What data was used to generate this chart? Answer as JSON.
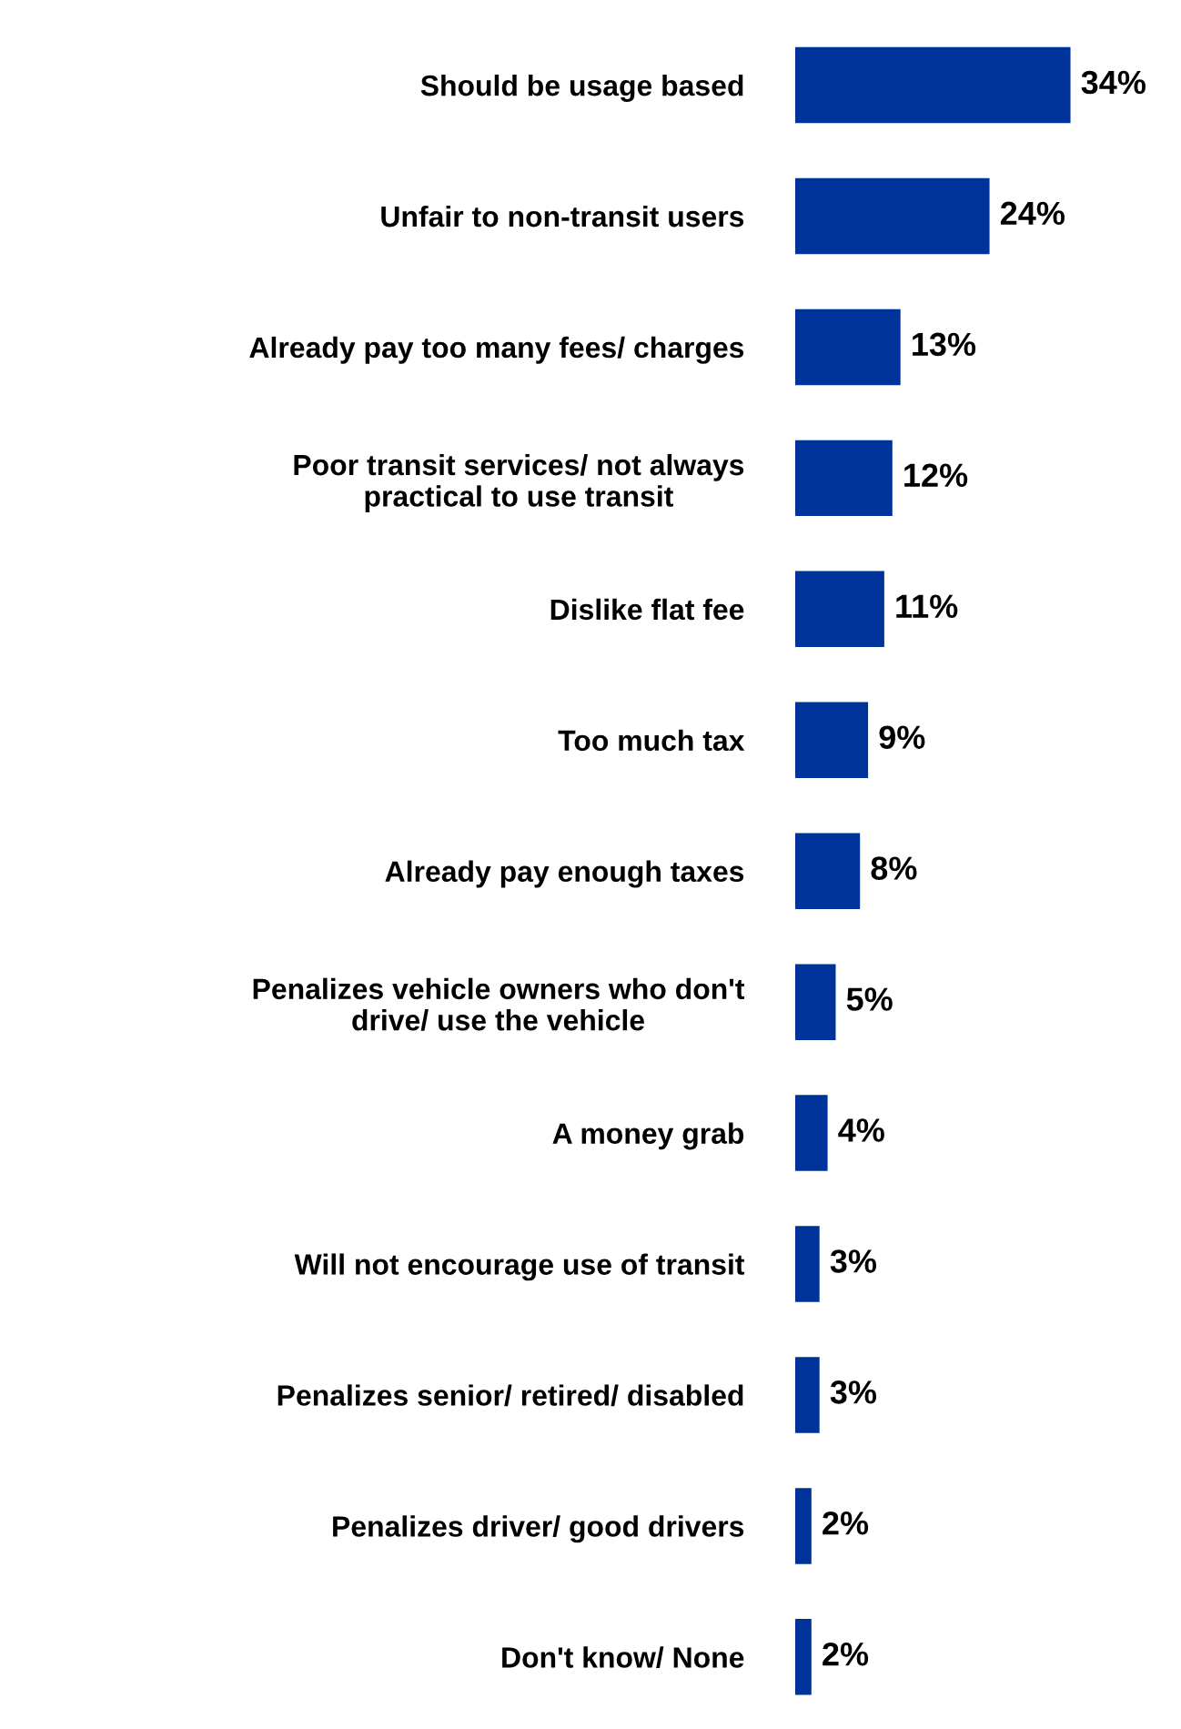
{
  "chart_data": {
    "type": "bar",
    "orientation": "horizontal",
    "color": "#003399",
    "categories": [
      "Should be usage based",
      "Unfair to non-transit users",
      "Already pay too many fees/ charges",
      "Poor transit services/ not always\npractical to use transit",
      "Dislike flat fee",
      "Too much tax",
      "Already pay enough taxes",
      "Penalizes vehicle owners who don't\ndrive/ use the vehicle",
      "A money grab",
      "Will not encourage use of transit",
      "Penalizes senior/ retired/ disabled",
      "Penalizes driver/ good drivers",
      "Don't know/ None"
    ],
    "values": [
      34,
      24,
      13,
      12,
      11,
      9,
      8,
      5,
      4,
      3,
      3,
      2,
      2
    ],
    "value_labels": [
      "34%",
      "24%",
      "13%",
      "12%",
      "11%",
      "9%",
      "8%",
      "5%",
      "4%",
      "3%",
      "3%",
      "2%",
      "2%"
    ]
  }
}
